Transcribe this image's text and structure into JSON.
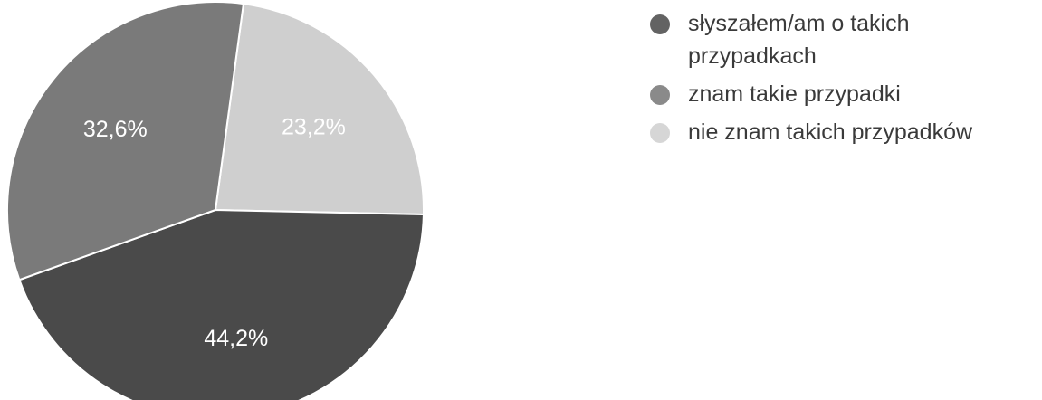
{
  "chart_data": {
    "type": "pie",
    "slices": [
      {
        "label": "słyszałem/am o takich przypadkach",
        "value": 44.2,
        "value_label": "44,2%",
        "color": "#4a4a4a"
      },
      {
        "label": "znam takie przypadki",
        "value": 32.6,
        "value_label": "32,6%",
        "color": "#7a7a7a"
      },
      {
        "label": "nie znam takich przypadków",
        "value": 23.2,
        "value_label": "23,2%",
        "color": "#cfcfcf"
      }
    ],
    "legend": {
      "position": "right",
      "items": [
        {
          "label": "słyszałem/am o takich przypadkach",
          "color": "#636363"
        },
        {
          "label": "znam takie przypadki",
          "color": "#8a8a8a"
        },
        {
          "label": "nie znam takich przypadków",
          "color": "#d6d6d6"
        }
      ]
    }
  }
}
